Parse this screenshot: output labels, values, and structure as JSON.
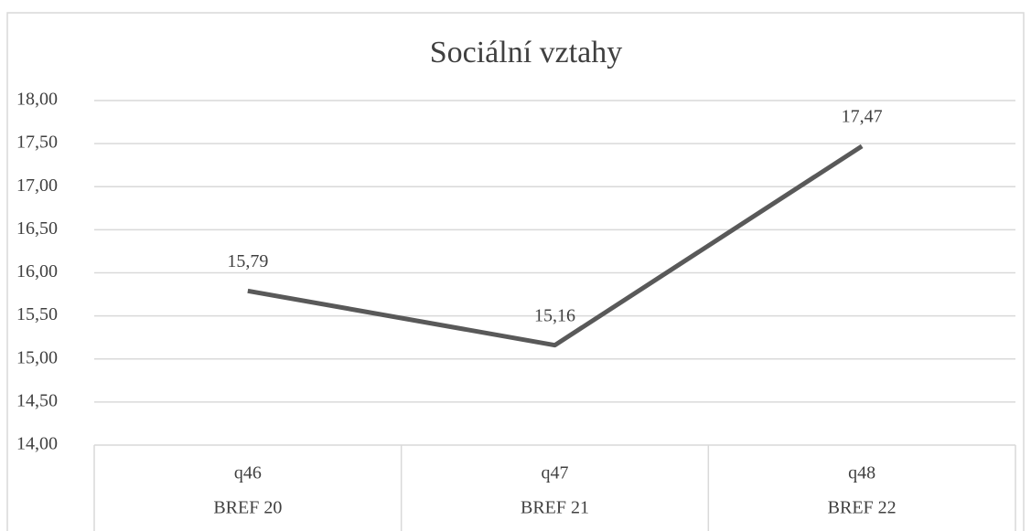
{
  "chart_data": {
    "type": "line",
    "title": "Sociální vztahy",
    "categories": [
      [
        "q46",
        "BREF 20"
      ],
      [
        "q47",
        "BREF 21"
      ],
      [
        "q48",
        "BREF 22"
      ]
    ],
    "series": [
      {
        "color": "#595959",
        "values": [
          15.79,
          15.16,
          17.47
        ],
        "value_labels": [
          "15,79",
          "15,16",
          "17,47"
        ]
      }
    ],
    "ylim": [
      14,
      18
    ],
    "yticks": [
      {
        "value": 14,
        "label": "14,00"
      },
      {
        "value": 14.5,
        "label": "14,50"
      },
      {
        "value": 15,
        "label": "15,00"
      },
      {
        "value": 15.5,
        "label": "15,50"
      },
      {
        "value": 16,
        "label": "16,00"
      },
      {
        "value": 16.5,
        "label": "16,50"
      },
      {
        "value": 17,
        "label": "17,00"
      },
      {
        "value": 17.5,
        "label": "17,50"
      },
      {
        "value": 18,
        "label": "18,00"
      }
    ],
    "grid": true
  }
}
